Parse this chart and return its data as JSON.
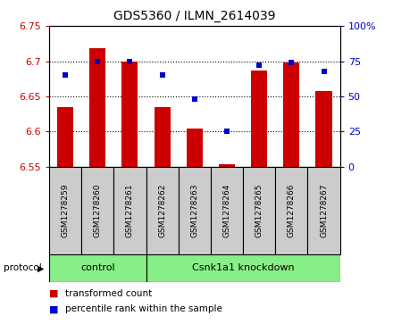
{
  "title": "GDS5360 / ILMN_2614039",
  "samples": [
    "GSM1278259",
    "GSM1278260",
    "GSM1278261",
    "GSM1278262",
    "GSM1278263",
    "GSM1278264",
    "GSM1278265",
    "GSM1278266",
    "GSM1278267"
  ],
  "transformed_count": [
    6.635,
    6.718,
    6.7,
    6.635,
    6.605,
    6.554,
    6.687,
    6.698,
    6.658
  ],
  "percentile_rank": [
    65,
    75,
    75,
    65,
    48,
    25,
    72,
    74,
    68
  ],
  "ylim": [
    6.55,
    6.75
  ],
  "yticks": [
    6.55,
    6.6,
    6.65,
    6.7,
    6.75
  ],
  "y2lim": [
    0,
    100
  ],
  "y2ticks": [
    0,
    25,
    50,
    75,
    100
  ],
  "y2ticklabels": [
    "0",
    "25",
    "50",
    "75",
    "100%"
  ],
  "bar_color": "#cc0000",
  "dot_color": "#0000cc",
  "bar_width": 0.5,
  "n_control": 3,
  "n_knockdown": 6,
  "control_label": "control",
  "knockdown_label": "Csnk1a1 knockdown",
  "protocol_label": "protocol",
  "legend_bar_label": "transformed count",
  "legend_dot_label": "percentile rank within the sample",
  "group_color": "#88ee88",
  "tick_area_color": "#cccccc",
  "left_axis_color": "#cc0000",
  "right_axis_color": "#0000cc",
  "base_value": 6.55,
  "bg_color": "#ffffff"
}
